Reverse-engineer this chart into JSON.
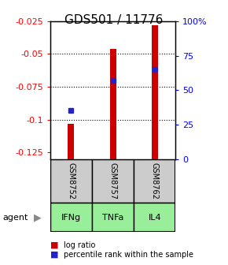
{
  "title": "GDS501 / 11776",
  "samples": [
    "GSM8752",
    "GSM8757",
    "GSM8762"
  ],
  "agents": [
    "IFNg",
    "TNFa",
    "IL4"
  ],
  "log_ratios": [
    -0.103,
    -0.046,
    -0.028
  ],
  "percentile_ranks": [
    35,
    57,
    65
  ],
  "ylim_left": [
    -0.13,
    -0.025
  ],
  "ylim_right": [
    0,
    100
  ],
  "yticks_left": [
    -0.125,
    -0.1,
    -0.075,
    -0.05,
    -0.025
  ],
  "yticks_right": [
    0,
    25,
    50,
    75,
    100
  ],
  "ytick_labels_left": [
    "-0.125",
    "-0.1",
    "-0.075",
    "-0.05",
    "-0.025"
  ],
  "ytick_labels_right": [
    "0",
    "25",
    "50",
    "75",
    "100%"
  ],
  "bar_color": "#cc0000",
  "dot_color": "#2222cc",
  "gsm_bg": "#cccccc",
  "agent_bg": "#99ee99",
  "title_fontsize": 11,
  "tick_fontsize": 8,
  "bar_width": 0.15
}
